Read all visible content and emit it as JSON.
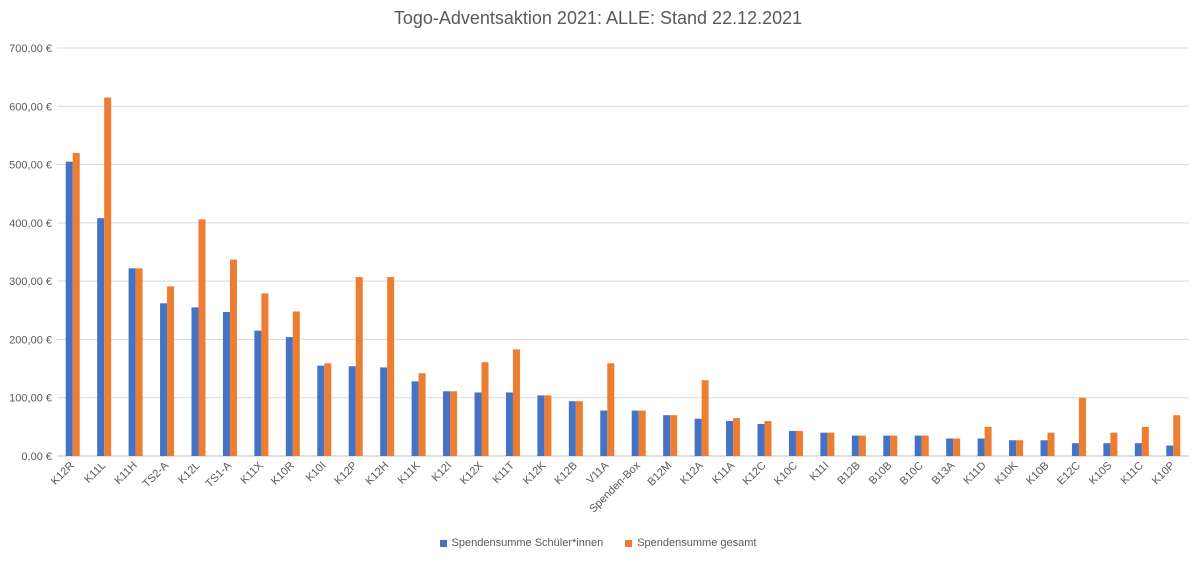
{
  "chart_data": {
    "type": "bar",
    "title": "Togo-Adventsaktion 2021: ALLE: Stand 22.12.2021",
    "xlabel": "",
    "ylabel": "",
    "ylim": [
      0,
      700
    ],
    "yticks": [
      0,
      100,
      200,
      300,
      400,
      500,
      600,
      700
    ],
    "ytick_labels": [
      "0,00 €",
      "100,00 €",
      "200,00 €",
      "300,00 €",
      "400,00 €",
      "500,00 €",
      "600,00 €",
      "700,00 €"
    ],
    "grid": true,
    "legend_position": "bottom",
    "categories": [
      "K12R",
      "K11L",
      "K11H",
      "TS2-A",
      "K12L",
      "TS1-A",
      "K11X",
      "K10R",
      "K10I",
      "K12P",
      "K12H",
      "K11K",
      "K12I",
      "K12X",
      "K11T",
      "K12K",
      "K12B",
      "V11A",
      "Spenden-Box",
      "B12M",
      "K12A",
      "K11A",
      "K12C",
      "K10C",
      "K11I",
      "B12B",
      "B10B",
      "B10C",
      "B13A",
      "K11D",
      "K10K",
      "K10B",
      "E12C",
      "K10S",
      "K11C",
      "K10P"
    ],
    "series": [
      {
        "name": "Spendensumme Schüler*innen",
        "color": "#4472C4",
        "values": [
          505,
          408,
          322,
          262,
          255,
          247,
          215,
          204,
          155,
          154,
          152,
          128,
          111,
          109,
          109,
          104,
          94,
          78,
          78,
          70,
          64,
          60,
          55,
          43,
          40,
          35,
          35,
          35,
          30,
          30,
          27,
          27,
          22,
          22,
          22,
          18
        ]
      },
      {
        "name": "Spendensumme gesamt",
        "color": "#ED7D31",
        "values": [
          520,
          615,
          322,
          291,
          406,
          337,
          279,
          248,
          159,
          307,
          307,
          142,
          111,
          161,
          183,
          104,
          94,
          159,
          78,
          70,
          130,
          65,
          60,
          43,
          40,
          35,
          35,
          35,
          30,
          50,
          27,
          40,
          100,
          40,
          50,
          70
        ]
      }
    ]
  }
}
